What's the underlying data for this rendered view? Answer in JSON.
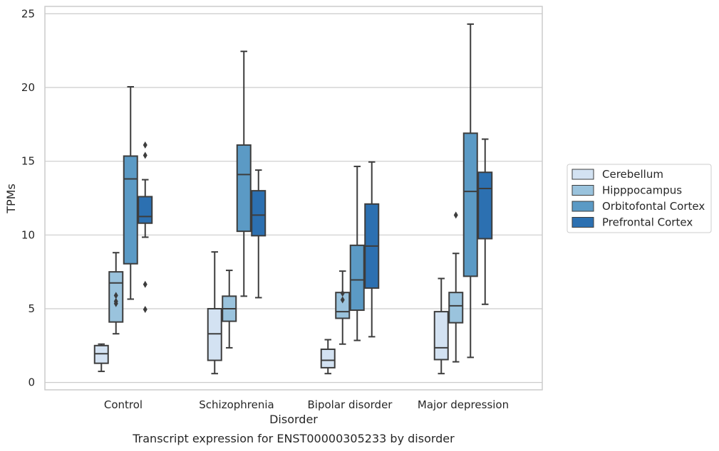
{
  "chart_data": {
    "type": "box",
    "caption": "Transcript expression for ENST00000305233 by disorder",
    "xlabel": "Disorder",
    "ylabel": "TPMs",
    "ylim": [
      -0.5,
      25.5
    ],
    "yticks": [
      0,
      5,
      10,
      15,
      20,
      25
    ],
    "grid": "horizontal",
    "legend_position": "right",
    "categories": [
      "Control",
      "Schizophrenia",
      "Bipolar disorder",
      "Major depression"
    ],
    "series": [
      {
        "name": "Cerebellum",
        "color": "#d3e2f2",
        "boxes": [
          {
            "whislo": 0.75,
            "q1": 1.3,
            "med": 1.95,
            "q3": 2.5,
            "whishi": 2.6,
            "fliers": []
          },
          {
            "whislo": 0.6,
            "q1": 1.5,
            "med": 3.3,
            "q3": 5.0,
            "whishi": 8.85,
            "fliers": []
          },
          {
            "whislo": 0.6,
            "q1": 1.0,
            "med": 1.5,
            "q3": 2.25,
            "whishi": 2.9,
            "fliers": []
          },
          {
            "whislo": 0.6,
            "q1": 1.55,
            "med": 2.35,
            "q3": 4.8,
            "whishi": 7.05,
            "fliers": []
          }
        ]
      },
      {
        "name": "Hipppocampus",
        "color": "#9ac3dd",
        "boxes": [
          {
            "whislo": 3.3,
            "q1": 4.1,
            "med": 6.75,
            "q3": 7.5,
            "whishi": 8.8,
            "fliers": [
              5.35,
              5.5,
              5.9
            ]
          },
          {
            "whislo": 2.35,
            "q1": 4.15,
            "med": 5.0,
            "q3": 5.85,
            "whishi": 7.6,
            "fliers": []
          },
          {
            "whislo": 2.6,
            "q1": 4.35,
            "med": 4.8,
            "q3": 6.1,
            "whishi": 7.55,
            "fliers": [
              5.6,
              6.05
            ]
          },
          {
            "whislo": 1.4,
            "q1": 4.05,
            "med": 5.2,
            "q3": 6.1,
            "whishi": 8.75,
            "fliers": [
              11.35
            ]
          }
        ]
      },
      {
        "name": "Orbitofontal Cortex",
        "color": "#5b9ac5",
        "boxes": [
          {
            "whislo": 5.65,
            "q1": 8.05,
            "med": 13.8,
            "q3": 15.35,
            "whishi": 20.05,
            "fliers": []
          },
          {
            "whislo": 5.85,
            "q1": 10.25,
            "med": 14.1,
            "q3": 16.1,
            "whishi": 22.45,
            "fliers": []
          },
          {
            "whislo": 2.85,
            "q1": 4.9,
            "med": 6.95,
            "q3": 9.3,
            "whishi": 14.65,
            "fliers": []
          },
          {
            "whislo": 1.7,
            "q1": 7.2,
            "med": 12.95,
            "q3": 16.9,
            "whishi": 24.3,
            "fliers": []
          }
        ]
      },
      {
        "name": "Prefrontal Cortex",
        "color": "#2c70b1",
        "boxes": [
          {
            "whislo": 9.85,
            "q1": 10.8,
            "med": 11.25,
            "q3": 12.6,
            "whishi": 13.75,
            "fliers": [
              4.95,
              6.65,
              15.4,
              16.1
            ]
          },
          {
            "whislo": 5.75,
            "q1": 9.95,
            "med": 11.35,
            "q3": 13.0,
            "whishi": 14.4,
            "fliers": []
          },
          {
            "whislo": 3.1,
            "q1": 6.4,
            "med": 9.25,
            "q3": 12.1,
            "whishi": 14.95,
            "fliers": []
          },
          {
            "whislo": 5.3,
            "q1": 9.75,
            "med": 13.15,
            "q3": 14.25,
            "whishi": 16.5,
            "fliers": []
          }
        ]
      }
    ]
  }
}
